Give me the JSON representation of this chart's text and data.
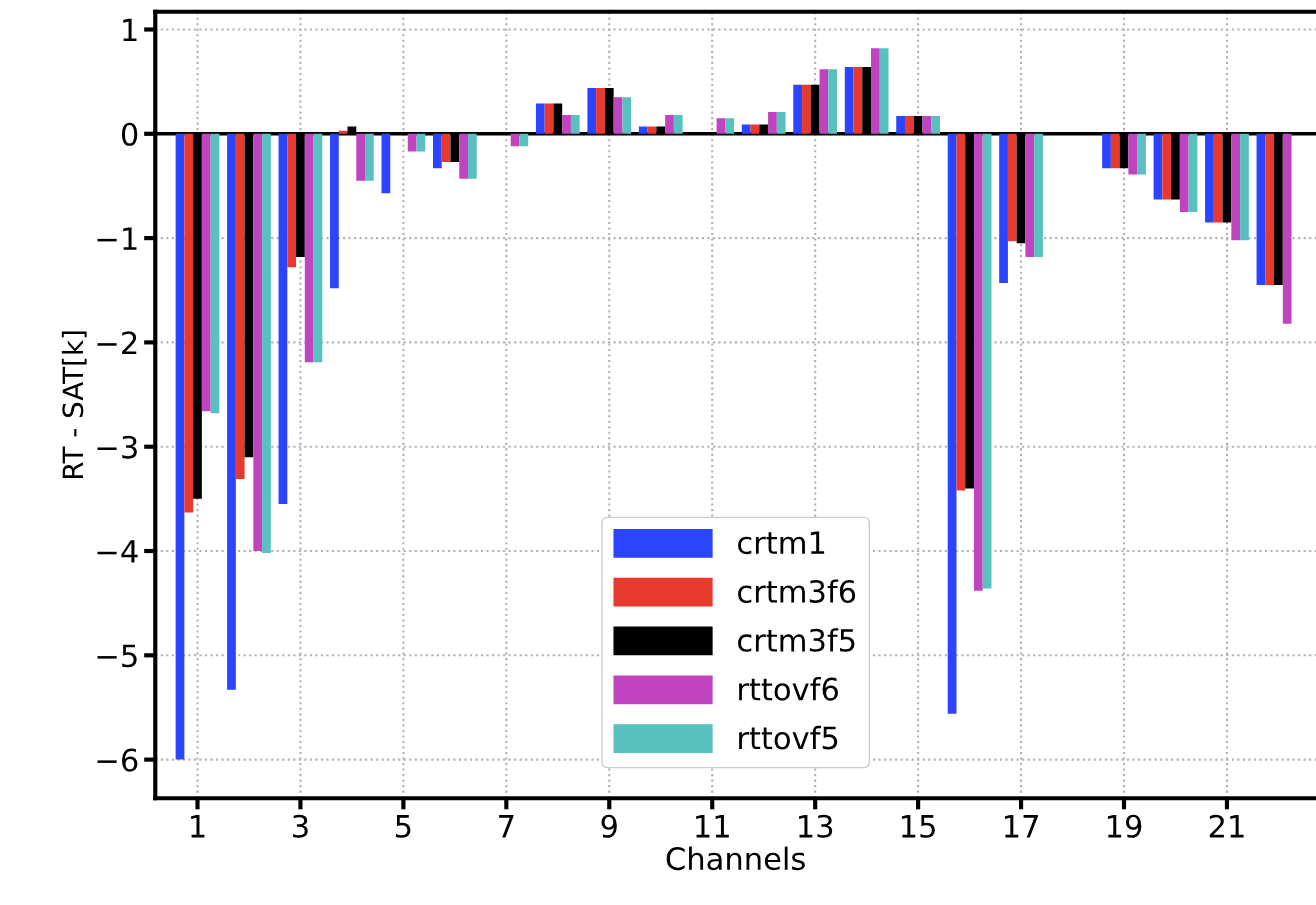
{
  "chart_data": {
    "type": "bar",
    "xlabel": "Channels",
    "ylabel": "RT - SAT[k]",
    "x": [
      1,
      2,
      3,
      4,
      5,
      6,
      7,
      8,
      9,
      10,
      11,
      12,
      13,
      14,
      15,
      16,
      17,
      18,
      19,
      20,
      21,
      22
    ],
    "series": [
      {
        "name": "crtm1",
        "color": "#2a44ff",
        "values": [
          -6.0,
          -5.33,
          -3.55,
          -1.48,
          -0.57,
          -0.33,
          0,
          0.29,
          0.44,
          0.07,
          0,
          0.09,
          0.47,
          0.64,
          0.17,
          -5.56,
          -1.43,
          0,
          -0.33,
          -0.63,
          -0.85,
          -1.45
        ]
      },
      {
        "name": "crtm3f6",
        "color": "#e8392e",
        "values": [
          -3.63,
          -3.31,
          -1.28,
          0.03,
          0,
          -0.27,
          0,
          0.29,
          0.44,
          0.07,
          0,
          0.09,
          0.47,
          0.64,
          0.17,
          -3.42,
          -1.03,
          0,
          -0.33,
          -0.63,
          -0.85,
          -1.45
        ]
      },
      {
        "name": "crtm3f5",
        "color": "#000000",
        "values": [
          -3.5,
          -3.1,
          -1.18,
          0.07,
          0,
          -0.27,
          0,
          0.29,
          0.44,
          0.07,
          0,
          0.09,
          0.47,
          0.64,
          0.17,
          -3.4,
          -1.05,
          0,
          -0.33,
          -0.63,
          -0.85,
          -1.45
        ]
      },
      {
        "name": "rttovf6",
        "color": "#c044c0",
        "values": [
          -2.66,
          -4.0,
          -2.19,
          -0.45,
          -0.17,
          -0.43,
          -0.12,
          0.18,
          0.35,
          0.18,
          0.15,
          0.21,
          0.62,
          0.82,
          0.17,
          -4.38,
          -1.18,
          0,
          -0.39,
          -0.75,
          -1.02,
          -1.82
        ]
      },
      {
        "name": "rttovf5",
        "color": "#59c0c0",
        "values": [
          -2.68,
          -4.02,
          -2.19,
          -0.45,
          -0.17,
          -0.43,
          -0.12,
          0.18,
          0.35,
          0.18,
          0.15,
          0.21,
          0.62,
          0.82,
          0.17,
          -4.36,
          -1.18,
          0,
          -0.39,
          -0.75,
          -1.02,
          null
        ]
      }
    ],
    "xlim": [
      0.18,
      22.73
    ],
    "xticks": [
      1,
      3,
      5,
      7,
      9,
      11,
      13,
      15,
      17,
      19,
      21
    ],
    "ylim": [
      -6.37,
      1.17
    ],
    "yticks": [
      {
        "value": -6,
        "label": "−6"
      },
      {
        "value": -5,
        "label": "−5"
      },
      {
        "value": -4,
        "label": "−4"
      },
      {
        "value": -3,
        "label": "−3"
      },
      {
        "value": -2,
        "label": "−2"
      },
      {
        "value": -1,
        "label": "−1"
      },
      0,
      1
    ],
    "ref_lines": [
      {
        "axis": "y",
        "value": 0,
        "color": "#000000"
      }
    ],
    "grid": true,
    "legend": "bottom"
  }
}
